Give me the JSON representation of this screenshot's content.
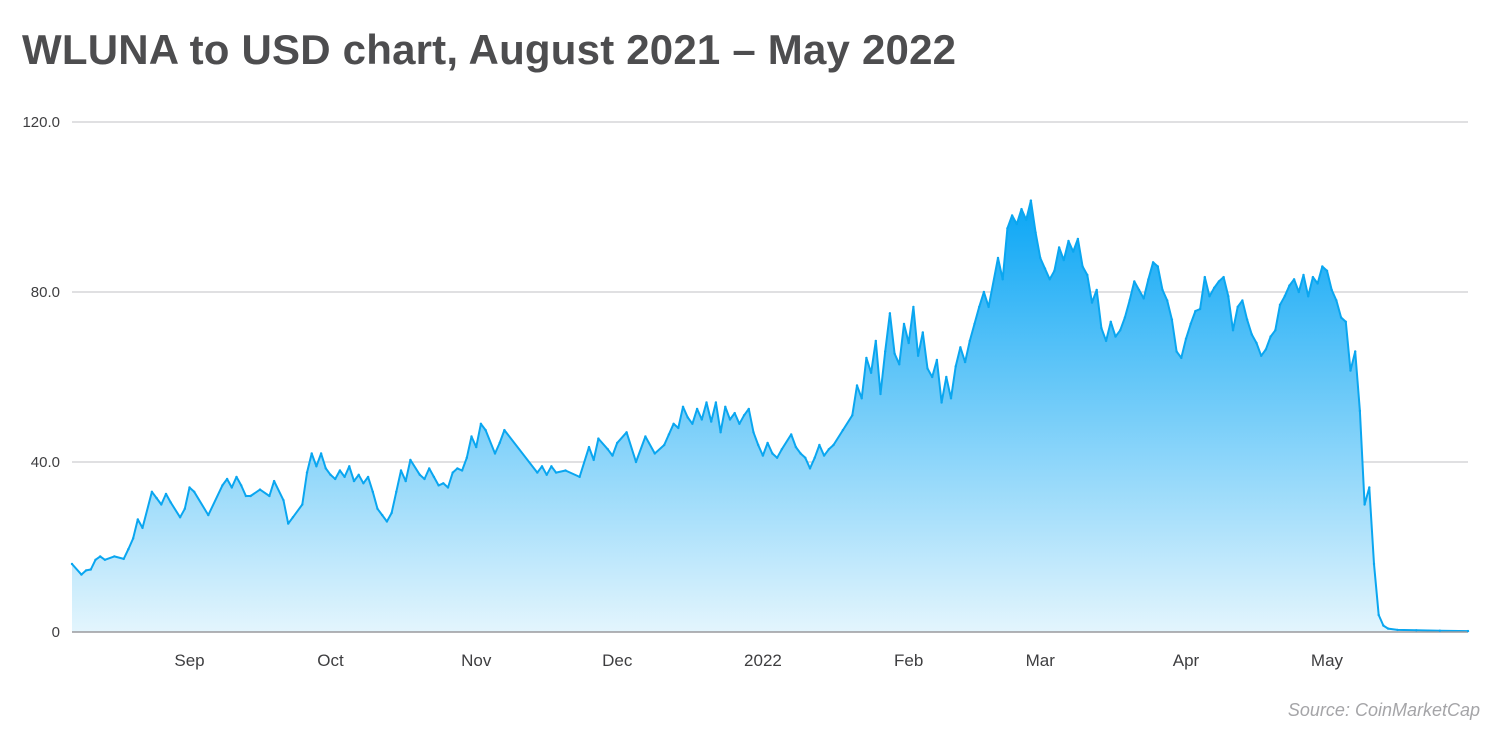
{
  "title": "WLUNA to USD chart, August 2021 – May 2022",
  "source": "Source: CoinMarketCap",
  "colors": {
    "line": "#0aa6f0",
    "fill_top": "#0aa6f5",
    "fill_bottom": "#e3f5fd",
    "grid": "#d6d6d8",
    "axis": "#9a9a9d"
  },
  "chart_data": {
    "type": "area",
    "title": "WLUNA to USD chart, August 2021 – May 2022",
    "xlabel": "",
    "ylabel": "",
    "x_range": [
      "2021-08-07",
      "2022-05-31"
    ],
    "ylim": [
      0,
      120
    ],
    "y_ticks": [
      {
        "value": 0,
        "label": "0"
      },
      {
        "value": 40,
        "label": "40.0"
      },
      {
        "value": 80,
        "label": "80.0"
      },
      {
        "value": 120,
        "label": "120.0"
      }
    ],
    "x_ticks": [
      {
        "date": "2021-09-01",
        "label": "Sep"
      },
      {
        "date": "2021-10-01",
        "label": "Oct"
      },
      {
        "date": "2021-11-01",
        "label": "Nov"
      },
      {
        "date": "2021-12-01",
        "label": "Dec"
      },
      {
        "date": "2022-01-01",
        "label": "2022"
      },
      {
        "date": "2022-02-01",
        "label": "Feb"
      },
      {
        "date": "2022-03-01",
        "label": "Mar"
      },
      {
        "date": "2022-04-01",
        "label": "Apr"
      },
      {
        "date": "2022-05-01",
        "label": "May"
      }
    ],
    "grid": true,
    "series": [
      {
        "points": [
          [
            "2021-08-07",
            16.0
          ],
          [
            "2021-08-09",
            13.5
          ],
          [
            "2021-08-10",
            14.5
          ],
          [
            "2021-08-11",
            14.7
          ],
          [
            "2021-08-12",
            17.0
          ],
          [
            "2021-08-13",
            17.8
          ],
          [
            "2021-08-14",
            17.0
          ],
          [
            "2021-08-16",
            17.8
          ],
          [
            "2021-08-18",
            17.2
          ],
          [
            "2021-08-19",
            19.5
          ],
          [
            "2021-08-20",
            22.0
          ],
          [
            "2021-08-21",
            26.5
          ],
          [
            "2021-08-22",
            24.5
          ],
          [
            "2021-08-24",
            33.0
          ],
          [
            "2021-08-25",
            31.5
          ],
          [
            "2021-08-26",
            30.0
          ],
          [
            "2021-08-27",
            32.5
          ],
          [
            "2021-08-28",
            30.5
          ],
          [
            "2021-08-30",
            27.0
          ],
          [
            "2021-08-31",
            29.0
          ],
          [
            "2021-09-01",
            34.0
          ],
          [
            "2021-09-02",
            33.0
          ],
          [
            "2021-09-05",
            27.5
          ],
          [
            "2021-09-08",
            34.5
          ],
          [
            "2021-09-09",
            36.0
          ],
          [
            "2021-09-10",
            34.0
          ],
          [
            "2021-09-11",
            36.5
          ],
          [
            "2021-09-12",
            34.5
          ],
          [
            "2021-09-13",
            32.0
          ],
          [
            "2021-09-14",
            32.0
          ],
          [
            "2021-09-16",
            33.5
          ],
          [
            "2021-09-18",
            32.0
          ],
          [
            "2021-09-19",
            35.5
          ],
          [
            "2021-09-21",
            31.0
          ],
          [
            "2021-09-22",
            25.5
          ],
          [
            "2021-09-23",
            27.0
          ],
          [
            "2021-09-25",
            30.0
          ],
          [
            "2021-09-26",
            37.5
          ],
          [
            "2021-09-27",
            42.0
          ],
          [
            "2021-09-28",
            39.0
          ],
          [
            "2021-09-29",
            42.0
          ],
          [
            "2021-09-30",
            38.5
          ],
          [
            "2021-10-01",
            37.0
          ],
          [
            "2021-10-02",
            36.0
          ],
          [
            "2021-10-03",
            38.0
          ],
          [
            "2021-10-04",
            36.5
          ],
          [
            "2021-10-05",
            39.0
          ],
          [
            "2021-10-06",
            35.5
          ],
          [
            "2021-10-07",
            37.0
          ],
          [
            "2021-10-08",
            35.0
          ],
          [
            "2021-10-09",
            36.5
          ],
          [
            "2021-10-10",
            33.0
          ],
          [
            "2021-10-11",
            29.0
          ],
          [
            "2021-10-12",
            27.5
          ],
          [
            "2021-10-13",
            26.0
          ],
          [
            "2021-10-14",
            28.0
          ],
          [
            "2021-10-15",
            33.0
          ],
          [
            "2021-10-16",
            38.0
          ],
          [
            "2021-10-17",
            35.5
          ],
          [
            "2021-10-18",
            40.5
          ],
          [
            "2021-10-20",
            37.0
          ],
          [
            "2021-10-21",
            36.0
          ],
          [
            "2021-10-22",
            38.5
          ],
          [
            "2021-10-23",
            36.5
          ],
          [
            "2021-10-24",
            34.5
          ],
          [
            "2021-10-25",
            35.0
          ],
          [
            "2021-10-26",
            34.0
          ],
          [
            "2021-10-27",
            37.5
          ],
          [
            "2021-10-28",
            38.5
          ],
          [
            "2021-10-29",
            38.0
          ],
          [
            "2021-10-30",
            41.0
          ],
          [
            "2021-10-31",
            46.0
          ],
          [
            "2021-11-01",
            43.5
          ],
          [
            "2021-11-02",
            49.0
          ],
          [
            "2021-11-03",
            47.5
          ],
          [
            "2021-11-05",
            42.0
          ],
          [
            "2021-11-06",
            44.5
          ],
          [
            "2021-11-07",
            47.5
          ],
          [
            "2021-11-14",
            37.5
          ],
          [
            "2021-11-15",
            39.0
          ],
          [
            "2021-11-16",
            37.0
          ],
          [
            "2021-11-17",
            39.0
          ],
          [
            "2021-11-18",
            37.5
          ],
          [
            "2021-11-20",
            38.0
          ],
          [
            "2021-11-23",
            36.5
          ],
          [
            "2021-11-25",
            43.5
          ],
          [
            "2021-11-26",
            40.5
          ],
          [
            "2021-11-27",
            45.5
          ],
          [
            "2021-11-29",
            43.0
          ],
          [
            "2021-11-30",
            41.5
          ],
          [
            "2021-12-01",
            44.5
          ],
          [
            "2021-12-03",
            47.0
          ],
          [
            "2021-12-05",
            40.0
          ],
          [
            "2021-12-07",
            46.0
          ],
          [
            "2021-12-09",
            42.0
          ],
          [
            "2021-12-11",
            44.0
          ],
          [
            "2021-12-12",
            46.5
          ],
          [
            "2021-12-13",
            49.0
          ],
          [
            "2021-12-14",
            48.0
          ],
          [
            "2021-12-15",
            53.0
          ],
          [
            "2021-12-16",
            50.5
          ],
          [
            "2021-12-17",
            49.0
          ],
          [
            "2021-12-18",
            52.5
          ],
          [
            "2021-12-19",
            50.0
          ],
          [
            "2021-12-20",
            54.0
          ],
          [
            "2021-12-21",
            49.5
          ],
          [
            "2021-12-22",
            54.0
          ],
          [
            "2021-12-23",
            47.0
          ],
          [
            "2021-12-24",
            53.0
          ],
          [
            "2021-12-25",
            50.0
          ],
          [
            "2021-12-26",
            51.5
          ],
          [
            "2021-12-27",
            49.0
          ],
          [
            "2021-12-28",
            51.0
          ],
          [
            "2021-12-29",
            52.5
          ],
          [
            "2021-12-30",
            47.0
          ],
          [
            "2021-12-31",
            44.0
          ],
          [
            "2022-01-01",
            41.5
          ],
          [
            "2022-01-02",
            44.5
          ],
          [
            "2022-01-03",
            42.0
          ],
          [
            "2022-01-04",
            41.0
          ],
          [
            "2022-01-05",
            43.0
          ],
          [
            "2022-01-07",
            46.5
          ],
          [
            "2022-01-08",
            43.5
          ],
          [
            "2022-01-09",
            42.0
          ],
          [
            "2022-01-10",
            41.0
          ],
          [
            "2022-01-11",
            38.5
          ],
          [
            "2022-01-12",
            41.0
          ],
          [
            "2022-01-13",
            44.0
          ],
          [
            "2022-01-14",
            41.5
          ],
          [
            "2022-01-15",
            43.0
          ],
          [
            "2022-01-16",
            44.0
          ],
          [
            "2022-01-18",
            47.5
          ],
          [
            "2022-01-20",
            51.0
          ],
          [
            "2022-01-21",
            58.0
          ],
          [
            "2022-01-22",
            55.0
          ],
          [
            "2022-01-23",
            64.5
          ],
          [
            "2022-01-24",
            61.0
          ],
          [
            "2022-01-25",
            68.5
          ],
          [
            "2022-01-26",
            56.0
          ],
          [
            "2022-01-27",
            66.0
          ],
          [
            "2022-01-28",
            75.0
          ],
          [
            "2022-01-29",
            65.5
          ],
          [
            "2022-01-30",
            63.0
          ],
          [
            "2022-01-31",
            72.5
          ],
          [
            "2022-02-01",
            68.0
          ],
          [
            "2022-02-02",
            76.5
          ],
          [
            "2022-02-03",
            65.0
          ],
          [
            "2022-02-04",
            70.5
          ],
          [
            "2022-02-05",
            62.0
          ],
          [
            "2022-02-06",
            60.0
          ],
          [
            "2022-02-07",
            64.0
          ],
          [
            "2022-02-08",
            54.0
          ],
          [
            "2022-02-09",
            60.0
          ],
          [
            "2022-02-10",
            55.0
          ],
          [
            "2022-02-11",
            62.5
          ],
          [
            "2022-02-12",
            67.0
          ],
          [
            "2022-02-13",
            63.5
          ],
          [
            "2022-02-14",
            68.5
          ],
          [
            "2022-02-15",
            72.5
          ],
          [
            "2022-02-16",
            76.5
          ],
          [
            "2022-02-17",
            80.0
          ],
          [
            "2022-02-18",
            76.5
          ],
          [
            "2022-02-20",
            88.0
          ],
          [
            "2022-02-21",
            83.0
          ],
          [
            "2022-02-22",
            95.0
          ],
          [
            "2022-02-23",
            98.0
          ],
          [
            "2022-02-24",
            96.0
          ],
          [
            "2022-02-25",
            99.5
          ],
          [
            "2022-02-26",
            97.0
          ],
          [
            "2022-02-27",
            101.5
          ],
          [
            "2022-02-28",
            94.0
          ],
          [
            "2022-03-01",
            88.0
          ],
          [
            "2022-03-02",
            85.5
          ],
          [
            "2022-03-03",
            83.0
          ],
          [
            "2022-03-04",
            85.0
          ],
          [
            "2022-03-05",
            90.5
          ],
          [
            "2022-03-06",
            87.5
          ],
          [
            "2022-03-07",
            92.0
          ],
          [
            "2022-03-08",
            89.5
          ],
          [
            "2022-03-09",
            92.5
          ],
          [
            "2022-03-10",
            86.0
          ],
          [
            "2022-03-11",
            84.0
          ],
          [
            "2022-03-12",
            77.5
          ],
          [
            "2022-03-13",
            80.5
          ],
          [
            "2022-03-14",
            71.5
          ],
          [
            "2022-03-15",
            68.5
          ],
          [
            "2022-03-16",
            73.0
          ],
          [
            "2022-03-17",
            69.5
          ],
          [
            "2022-03-18",
            71.0
          ],
          [
            "2022-03-19",
            74.0
          ],
          [
            "2022-03-20",
            78.0
          ],
          [
            "2022-03-21",
            82.5
          ],
          [
            "2022-03-22",
            80.5
          ],
          [
            "2022-03-23",
            78.5
          ],
          [
            "2022-03-24",
            83.0
          ],
          [
            "2022-03-25",
            87.0
          ],
          [
            "2022-03-26",
            86.0
          ],
          [
            "2022-03-27",
            80.5
          ],
          [
            "2022-03-28",
            78.0
          ],
          [
            "2022-03-29",
            73.5
          ],
          [
            "2022-03-30",
            66.0
          ],
          [
            "2022-03-31",
            64.5
          ],
          [
            "2022-04-01",
            69.0
          ],
          [
            "2022-04-02",
            72.5
          ],
          [
            "2022-04-03",
            75.5
          ],
          [
            "2022-04-04",
            76.0
          ],
          [
            "2022-04-05",
            83.5
          ],
          [
            "2022-04-06",
            79.0
          ],
          [
            "2022-04-07",
            81.0
          ],
          [
            "2022-04-08",
            82.5
          ],
          [
            "2022-04-09",
            83.5
          ],
          [
            "2022-04-10",
            79.0
          ],
          [
            "2022-04-11",
            71.0
          ],
          [
            "2022-04-12",
            76.5
          ],
          [
            "2022-04-13",
            78.0
          ],
          [
            "2022-04-14",
            73.5
          ],
          [
            "2022-04-15",
            70.0
          ],
          [
            "2022-04-16",
            68.0
          ],
          [
            "2022-04-17",
            65.0
          ],
          [
            "2022-04-18",
            66.5
          ],
          [
            "2022-04-19",
            69.5
          ],
          [
            "2022-04-20",
            71.0
          ],
          [
            "2022-04-21",
            77.0
          ],
          [
            "2022-04-22",
            79.0
          ],
          [
            "2022-04-23",
            81.5
          ],
          [
            "2022-04-24",
            83.0
          ],
          [
            "2022-04-25",
            80.0
          ],
          [
            "2022-04-26",
            84.0
          ],
          [
            "2022-04-27",
            79.0
          ],
          [
            "2022-04-28",
            83.5
          ],
          [
            "2022-04-29",
            82.0
          ],
          [
            "2022-04-30",
            86.0
          ],
          [
            "2022-05-01",
            85.0
          ],
          [
            "2022-05-02",
            80.5
          ],
          [
            "2022-05-03",
            78.0
          ],
          [
            "2022-05-04",
            74.0
          ],
          [
            "2022-05-05",
            73.0
          ],
          [
            "2022-05-06",
            61.5
          ],
          [
            "2022-05-07",
            66.0
          ],
          [
            "2022-05-08",
            52.0
          ],
          [
            "2022-05-09",
            30.0
          ],
          [
            "2022-05-10",
            34.0
          ],
          [
            "2022-05-11",
            16.0
          ],
          [
            "2022-05-12",
            4.0
          ],
          [
            "2022-05-13",
            1.5
          ],
          [
            "2022-05-14",
            0.8
          ],
          [
            "2022-05-16",
            0.5
          ],
          [
            "2022-05-20",
            0.4
          ],
          [
            "2022-05-25",
            0.3
          ],
          [
            "2022-05-31",
            0.2
          ]
        ]
      }
    ]
  }
}
